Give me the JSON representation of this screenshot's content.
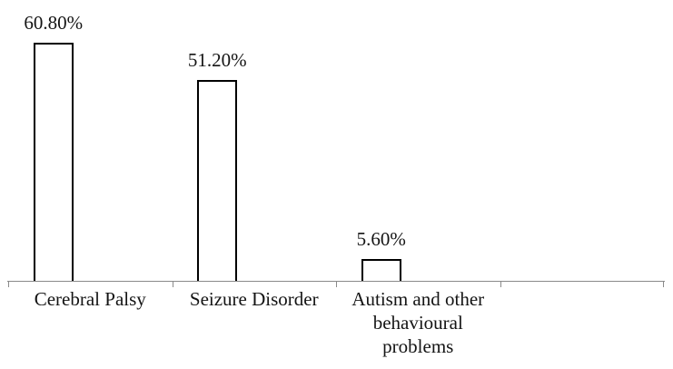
{
  "chart_data": {
    "type": "bar",
    "title": "",
    "xlabel": "",
    "ylabel": "",
    "categories": [
      "Cerebral Palsy",
      "Seizure Disorder",
      "Autism and other behavioural problems",
      ""
    ],
    "values": [
      60.8,
      51.2,
      5.6,
      null
    ],
    "value_labels": [
      "60.80%",
      "51.20%",
      "5.60%",
      ""
    ],
    "ylim": [
      0,
      65
    ],
    "grid": false,
    "legend": false,
    "colors": {
      "background": "#ffffff",
      "bar_fill": "#ffffff",
      "bar_border": "#000000",
      "axis": "#8a8a8a",
      "text": "#141414"
    }
  }
}
